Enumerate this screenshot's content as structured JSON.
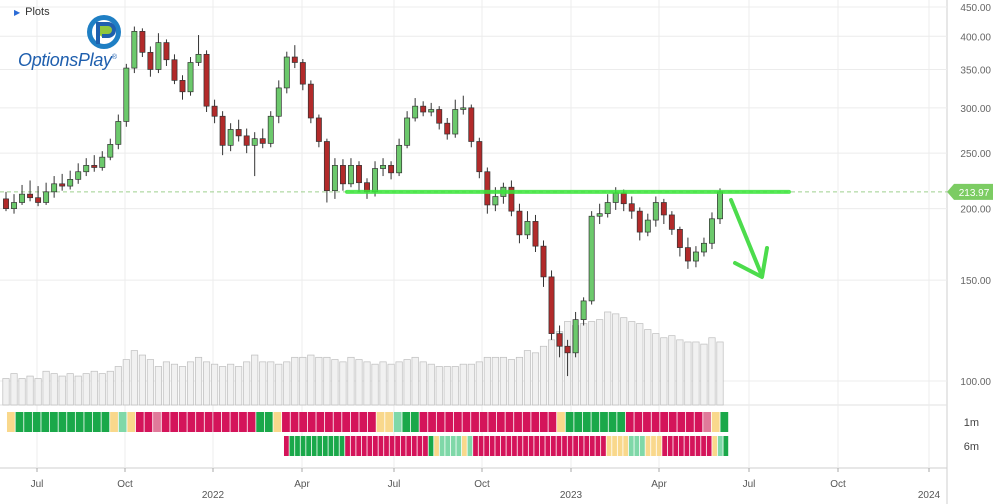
{
  "header": {
    "plots_label": "Plots",
    "logo_text": "OptionsPlay",
    "logo_mark": "®"
  },
  "colors": {
    "up": "#6cc96c",
    "down": "#b22a2a",
    "volume": "#f1f1f1",
    "trendline": "#39e539",
    "arrow": "#4cdc4c",
    "price_tag": "#7ccc63"
  },
  "chart_data": {
    "type": "candlestick",
    "title": "",
    "price_axis": {
      "scale": "log",
      "ticks": [
        100,
        150,
        200,
        250,
        300,
        350,
        400,
        450
      ],
      "tick_labels": [
        "100.00",
        "150.00",
        "200.00",
        "250.00",
        "300.00",
        "350.00",
        "400.00",
        "450.00"
      ]
    },
    "time_axis": {
      "labels": [
        "Jul",
        "Oct",
        "2022",
        "Apr",
        "Jul",
        "Oct",
        "2023",
        "Apr",
        "Jul",
        "Oct",
        "2024"
      ]
    },
    "last_price": 213.97,
    "last_price_label": "213.97",
    "trendline_level": 213.97,
    "candles": [
      [
        208,
        200,
        214,
        198
      ],
      [
        200,
        205,
        212,
        196
      ],
      [
        205,
        212,
        220,
        203
      ],
      [
        212,
        209,
        224,
        206
      ],
      [
        209,
        205,
        219,
        202
      ],
      [
        205,
        214,
        222,
        203
      ],
      [
        214,
        221,
        228,
        209
      ],
      [
        221,
        219,
        230,
        215
      ],
      [
        219,
        225,
        233,
        216
      ],
      [
        225,
        232,
        240,
        221
      ],
      [
        232,
        238,
        245,
        228
      ],
      [
        238,
        236,
        248,
        232
      ],
      [
        236,
        246,
        252,
        233
      ],
      [
        246,
        259,
        265,
        243
      ],
      [
        259,
        284,
        292,
        254
      ],
      [
        284,
        352,
        358,
        278
      ],
      [
        352,
        408,
        416,
        345
      ],
      [
        408,
        375,
        413,
        368
      ],
      [
        375,
        350,
        384,
        340
      ],
      [
        350,
        390,
        405,
        345
      ],
      [
        390,
        364,
        395,
        355
      ],
      [
        364,
        335,
        372,
        330
      ],
      [
        335,
        320,
        342,
        310
      ],
      [
        320,
        360,
        368,
        315
      ],
      [
        360,
        372,
        402,
        355
      ],
      [
        372,
        302,
        378,
        295
      ],
      [
        302,
        290,
        310,
        282
      ],
      [
        290,
        258,
        296,
        248
      ],
      [
        258,
        275,
        282,
        252
      ],
      [
        275,
        268,
        286,
        262
      ],
      [
        268,
        258,
        276,
        250
      ],
      [
        258,
        265,
        272,
        228
      ],
      [
        265,
        260,
        276,
        255
      ],
      [
        260,
        290,
        296,
        256
      ],
      [
        290,
        325,
        335,
        282
      ],
      [
        325,
        368,
        376,
        318
      ],
      [
        368,
        360,
        386,
        352
      ],
      [
        360,
        330,
        365,
        322
      ],
      [
        330,
        288,
        335,
        282
      ],
      [
        288,
        262,
        292,
        256
      ],
      [
        262,
        215,
        265,
        205
      ],
      [
        215,
        238,
        245,
        208
      ],
      [
        238,
        221,
        244,
        215
      ],
      [
        221,
        238,
        245,
        218
      ],
      [
        238,
        222,
        242,
        214
      ],
      [
        222,
        214,
        226,
        208
      ],
      [
        214,
        235,
        242,
        210
      ],
      [
        235,
        238,
        245,
        228
      ],
      [
        238,
        231,
        242,
        225
      ],
      [
        231,
        258,
        265,
        228
      ],
      [
        258,
        288,
        296,
        255
      ],
      [
        288,
        302,
        312,
        284
      ],
      [
        302,
        295,
        308,
        290
      ],
      [
        295,
        298,
        306,
        290
      ],
      [
        298,
        282,
        302,
        275
      ],
      [
        282,
        270,
        288,
        264
      ],
      [
        270,
        298,
        310,
        266
      ],
      [
        298,
        300,
        315,
        292
      ],
      [
        300,
        262,
        304,
        256
      ],
      [
        262,
        232,
        266,
        226
      ],
      [
        232,
        203,
        236,
        196
      ],
      [
        203,
        210,
        218,
        198
      ],
      [
        210,
        218,
        222,
        204
      ],
      [
        218,
        198,
        224,
        194
      ],
      [
        198,
        180,
        204,
        174
      ],
      [
        180,
        190,
        198,
        177
      ],
      [
        190,
        172,
        195,
        168
      ],
      [
        172,
        152,
        176,
        146
      ],
      [
        152,
        121,
        156,
        118
      ],
      [
        121,
        115,
        125,
        110
      ],
      [
        115,
        112,
        118,
        102
      ],
      [
        112,
        128,
        132,
        110
      ],
      [
        128,
        138,
        140,
        125
      ],
      [
        138,
        194,
        198,
        136
      ],
      [
        194,
        196,
        204,
        188
      ],
      [
        196,
        205,
        212,
        193
      ],
      [
        205,
        213,
        218,
        199
      ],
      [
        213,
        204,
        216,
        198
      ],
      [
        204,
        198,
        210,
        192
      ],
      [
        198,
        182,
        201,
        176
      ],
      [
        182,
        191,
        196,
        179
      ],
      [
        191,
        205,
        210,
        186
      ],
      [
        205,
        195,
        208,
        188
      ],
      [
        195,
        184,
        198,
        180
      ],
      [
        184,
        171,
        186,
        165
      ],
      [
        171,
        162,
        178,
        157
      ],
      [
        162,
        168,
        172,
        158
      ],
      [
        168,
        174,
        178,
        165
      ],
      [
        174,
        192,
        197,
        170
      ],
      [
        192,
        213.97,
        217,
        188
      ]
    ],
    "volume": [
      101,
      103,
      101,
      102,
      101,
      104,
      103,
      102,
      103,
      102,
      103,
      104,
      103,
      104,
      106,
      109,
      113,
      111,
      109,
      106,
      108,
      107,
      106,
      108,
      110,
      108,
      107,
      106,
      107,
      106,
      108,
      111,
      108,
      108,
      107,
      108,
      110,
      110,
      111,
      110,
      110,
      109,
      108,
      110,
      109,
      108,
      107,
      108,
      107,
      108,
      109,
      110,
      108,
      107,
      106,
      106,
      106,
      107,
      107,
      108,
      110,
      110,
      110,
      109,
      110,
      113,
      112,
      115,
      118,
      122,
      127,
      125,
      126,
      127,
      128,
      132,
      131,
      129,
      127,
      126,
      123,
      121,
      119,
      120,
      118,
      117,
      117,
      116,
      119,
      117
    ],
    "signal_rows": {
      "labels": [
        "1m",
        "6m"
      ],
      "row1": "YGGGGGGGGGGGYLYRRTRRRRRRRRRRRGGYRRRRRRRRRRRYYLGGRRRRRRRRRRRRRRRRYGGGGGGGRRRRRRRRRTYG",
      "row1_start": 0,
      "row2": "RGGGGGGGGGGRRRRRRRRRRRRRRRGYLLLLYLRRRRRRRRRRRRRRRRRRRRRRRRYYYYLLLYYYRRRRRRRRRYLG",
      "row2_start": 10
    }
  }
}
